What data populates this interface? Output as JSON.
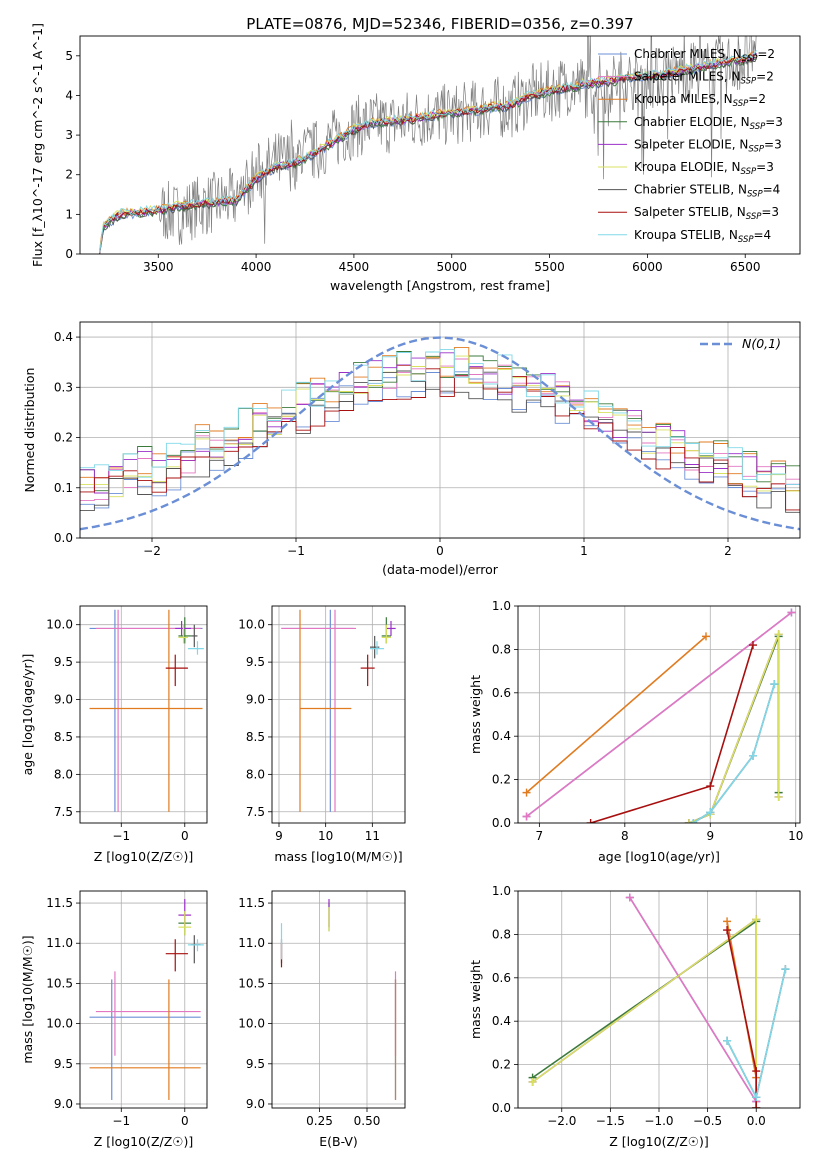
{
  "title": "PLATE=0876, MJD=52346, FIBERID=0356, z=0.397",
  "series_colors": [
    "#6b8fd6",
    "#e377c2",
    "#e07b20",
    "#3c7a3c",
    "#9b30c8",
    "#d8e060",
    "#555555",
    "#a80f0f",
    "#80d8e8"
  ],
  "chart_data": [
    {
      "type": "line",
      "xlabel": "wavelength [Angstrom, rest frame]",
      "ylabel": "Flux [f_λ10^-17 erg cm^-2 s^-1 A^-1]",
      "xlim": [
        3100,
        6780
      ],
      "ylim": [
        0,
        5.5
      ],
      "xticks": [
        3500,
        4000,
        4500,
        5000,
        5500,
        6000,
        6500
      ],
      "yticks": [
        0,
        1,
        2,
        3,
        4,
        5
      ],
      "legend": [
        {
          "imf": "Chabrier",
          "lib": "MILES",
          "n": "2"
        },
        {
          "imf": "Salpeter",
          "lib": "MILES",
          "n": "2"
        },
        {
          "imf": "Kroupa",
          "lib": "MILES",
          "n": "2"
        },
        {
          "imf": "Chabrier",
          "lib": "ELODIE",
          "n": "3"
        },
        {
          "imf": "Salpeter",
          "lib": "ELODIE",
          "n": "3"
        },
        {
          "imf": "Kroupa",
          "lib": "ELODIE",
          "n": "3"
        },
        {
          "imf": "Chabrier",
          "lib": "STELIB",
          "n": "4"
        },
        {
          "imf": "Salpeter",
          "lib": "STELIB",
          "n": "3"
        },
        {
          "imf": "Kroupa",
          "lib": "STELIB",
          "n": "4"
        }
      ],
      "legend_position": "right",
      "data_x": [
        3200,
        3220,
        3300,
        3400,
        3500,
        3600,
        3700,
        3800,
        3900,
        4000,
        4100,
        4200,
        4300,
        4400,
        4500,
        4600,
        4700,
        4800,
        4900,
        5000,
        5100,
        5200,
        5300,
        5400,
        5500,
        5600,
        5700,
        5800,
        5900,
        6000,
        6100,
        6200,
        6300,
        6400,
        6500,
        6560
      ],
      "data_y": [
        0.0,
        0.75,
        1.0,
        1.05,
        1.1,
        1.0,
        1.2,
        1.3,
        1.4,
        2.0,
        2.3,
        2.4,
        2.6,
        2.9,
        3.2,
        3.3,
        3.3,
        3.4,
        3.5,
        3.5,
        3.6,
        3.7,
        3.7,
        4.0,
        4.1,
        4.3,
        4.2,
        4.3,
        4.4,
        4.4,
        4.5,
        4.6,
        4.6,
        4.8,
        4.9,
        4.9
      ],
      "model_y": [
        0.0,
        0.7,
        1.0,
        1.05,
        1.1,
        1.2,
        1.25,
        1.3,
        1.35,
        1.9,
        2.2,
        2.3,
        2.55,
        2.85,
        3.15,
        3.3,
        3.35,
        3.4,
        3.5,
        3.55,
        3.6,
        3.7,
        3.75,
        4.0,
        4.1,
        4.2,
        4.3,
        4.35,
        4.45,
        4.5,
        4.55,
        4.65,
        4.75,
        4.85,
        4.9,
        5.0
      ]
    },
    {
      "type": "histogram",
      "xlabel": "(data-model)/error",
      "ylabel": "Normed distribution",
      "xlim": [
        -2.5,
        2.5
      ],
      "ylim": [
        0,
        0.43
      ],
      "xticks": [
        -2,
        -1,
        0,
        1,
        2
      ],
      "yticks": [
        0.0,
        0.1,
        0.2,
        0.3,
        0.4
      ],
      "legend": "N(0,1)",
      "legend_position": "top-right",
      "grid": true
    },
    {
      "type": "errorbar",
      "xlabel": "Z [log10(Z/Z☉)]",
      "ylabel": "age  [log10(age/yr)]",
      "xlim": [
        -1.65,
        0.35
      ],
      "ylim": [
        7.35,
        10.25
      ],
      "xticks": [
        -1,
        0
      ],
      "yticks": [
        7.5,
        8.0,
        8.5,
        9.0,
        9.5,
        10.0
      ],
      "grid": true,
      "points": [
        {
          "s": 0,
          "x": -1.1,
          "y": 9.95,
          "xlo": -1.5,
          "xhi": 0.28,
          "ylo": 7.5,
          "yhi": 10.2
        },
        {
          "s": 1,
          "x": -1.05,
          "y": 9.95,
          "xlo": -1.4,
          "xhi": 0.25,
          "ylo": 7.5,
          "yhi": 10.2
        },
        {
          "s": 2,
          "x": -0.25,
          "y": 8.88,
          "xlo": -1.5,
          "xhi": 0.28,
          "ylo": 7.5,
          "yhi": 10.2
        },
        {
          "s": 3,
          "x": 0.0,
          "y": 9.85,
          "xlo": -0.1,
          "xhi": 0.1,
          "ylo": 9.75,
          "yhi": 10.1
        },
        {
          "s": 4,
          "x": -0.05,
          "y": 9.95,
          "xlo": -0.15,
          "xhi": 0.1,
          "ylo": 9.85,
          "yhi": 10.05
        },
        {
          "s": 5,
          "x": -0.02,
          "y": 9.83,
          "xlo": -0.1,
          "xhi": 0.05,
          "ylo": 9.75,
          "yhi": 10.0
        },
        {
          "s": 6,
          "x": 0.15,
          "y": 9.85,
          "xlo": 0.1,
          "xhi": 0.2,
          "ylo": 9.7,
          "yhi": 10.0
        },
        {
          "s": 7,
          "x": -0.15,
          "y": 9.42,
          "xlo": -0.3,
          "xhi": 0.05,
          "ylo": 9.18,
          "yhi": 9.6
        },
        {
          "s": 8,
          "x": 0.2,
          "y": 9.68,
          "xlo": 0.05,
          "xhi": 0.3,
          "ylo": 9.6,
          "yhi": 9.78
        }
      ]
    },
    {
      "type": "errorbar",
      "xlabel": "mass [log10(M/M☉)]",
      "ylabel": "",
      "xlim": [
        8.85,
        11.7
      ],
      "ylim": [
        7.35,
        10.25
      ],
      "xticks": [
        9,
        10,
        11
      ],
      "yticks": [
        7.5,
        8.0,
        8.5,
        9.0,
        9.5,
        10.0
      ],
      "grid": true,
      "points": [
        {
          "s": 0,
          "x": 10.1,
          "y": 9.95,
          "xlo": 9.05,
          "xhi": 10.6,
          "ylo": 7.5,
          "yhi": 10.2
        },
        {
          "s": 1,
          "x": 10.2,
          "y": 9.95,
          "xlo": 9.05,
          "xhi": 10.65,
          "ylo": 7.5,
          "yhi": 10.2
        },
        {
          "s": 2,
          "x": 9.45,
          "y": 8.88,
          "xlo": 9.45,
          "xhi": 10.55,
          "ylo": 7.5,
          "yhi": 10.2
        },
        {
          "s": 3,
          "x": 11.3,
          "y": 9.85,
          "xlo": 11.2,
          "xhi": 11.4,
          "ylo": 9.75,
          "yhi": 10.1
        },
        {
          "s": 4,
          "x": 11.4,
          "y": 9.95,
          "xlo": 11.3,
          "xhi": 11.5,
          "ylo": 9.85,
          "yhi": 10.05
        },
        {
          "s": 5,
          "x": 11.3,
          "y": 9.83,
          "xlo": 11.2,
          "xhi": 11.4,
          "ylo": 9.75,
          "yhi": 10.0
        },
        {
          "s": 6,
          "x": 11.05,
          "y": 9.7,
          "xlo": 10.95,
          "xhi": 11.15,
          "ylo": 9.55,
          "yhi": 9.85
        },
        {
          "s": 7,
          "x": 10.9,
          "y": 9.42,
          "xlo": 10.75,
          "xhi": 11.05,
          "ylo": 9.18,
          "yhi": 9.6
        },
        {
          "s": 8,
          "x": 11.1,
          "y": 9.68,
          "xlo": 10.95,
          "xhi": 11.25,
          "ylo": 9.6,
          "yhi": 9.78
        }
      ]
    },
    {
      "type": "line",
      "xlabel": "age  [log10(age/yr)]",
      "ylabel": "mass weight",
      "xlim": [
        6.75,
        10.05
      ],
      "ylim": [
        0,
        1.0
      ],
      "xticks": [
        7,
        8,
        9,
        10
      ],
      "yticks": [
        0.0,
        0.2,
        0.4,
        0.6,
        0.8,
        1.0
      ],
      "grid": true,
      "series": [
        {
          "s": 0,
          "x": [
            6.85,
            9.95
          ],
          "y": [
            0.03,
            0.97
          ]
        },
        {
          "s": 1,
          "x": [
            6.85,
            9.95
          ],
          "y": [
            0.03,
            0.97
          ]
        },
        {
          "s": 2,
          "x": [
            6.85,
            8.95
          ],
          "y": [
            0.14,
            0.86
          ]
        },
        {
          "s": 3,
          "x": [
            8.75,
            9.0,
            9.8,
            9.8
          ],
          "y": [
            0.0,
            0.04,
            0.86,
            0.14
          ]
        },
        {
          "s": 4,
          "x": [
            8.75,
            9.0,
            9.8,
            9.8
          ],
          "y": [
            0.0,
            0.04,
            0.87,
            0.12
          ]
        },
        {
          "s": 5,
          "x": [
            8.75,
            9.0,
            9.8,
            9.8
          ],
          "y": [
            0.0,
            0.04,
            0.87,
            0.12
          ]
        },
        {
          "s": 6,
          "x": [
            8.8,
            9.0,
            9.5,
            9.75
          ],
          "y": [
            0.0,
            0.05,
            0.31,
            0.64
          ]
        },
        {
          "s": 7,
          "x": [
            7.6,
            9.0,
            9.5
          ],
          "y": [
            0.0,
            0.17,
            0.82
          ]
        },
        {
          "s": 8,
          "x": [
            8.8,
            9.0,
            9.5,
            9.75
          ],
          "y": [
            0.0,
            0.05,
            0.31,
            0.64
          ]
        }
      ]
    },
    {
      "type": "errorbar",
      "xlabel": "Z [log10(Z/Z☉)]",
      "ylabel": "mass [log10(M/M☉)]",
      "xlim": [
        -1.65,
        0.35
      ],
      "ylim": [
        8.95,
        11.65
      ],
      "xticks": [
        -1,
        0
      ],
      "yticks": [
        9.0,
        9.5,
        10.0,
        10.5,
        11.0,
        11.5
      ],
      "grid": true,
      "points": [
        {
          "s": 0,
          "x": -1.15,
          "y": 10.08,
          "xlo": -1.5,
          "xhi": 0.25,
          "ylo": 9.05,
          "yhi": 10.55
        },
        {
          "s": 1,
          "x": -1.1,
          "y": 10.15,
          "xlo": -1.4,
          "xhi": 0.25,
          "ylo": 9.6,
          "yhi": 10.65
        },
        {
          "s": 2,
          "x": -0.25,
          "y": 9.45,
          "xlo": -1.5,
          "xhi": 0.25,
          "ylo": 9.05,
          "yhi": 10.55
        },
        {
          "s": 3,
          "x": 0.0,
          "y": 11.25,
          "xlo": -0.1,
          "xhi": 0.1,
          "ylo": 11.1,
          "yhi": 11.4
        },
        {
          "s": 4,
          "x": 0.0,
          "y": 11.35,
          "xlo": -0.1,
          "xhi": 0.1,
          "ylo": 11.2,
          "yhi": 11.55
        },
        {
          "s": 5,
          "x": 0.0,
          "y": 11.2,
          "xlo": -0.1,
          "xhi": 0.1,
          "ylo": 11.1,
          "yhi": 11.4
        },
        {
          "s": 6,
          "x": 0.15,
          "y": 10.98,
          "xlo": 0.1,
          "xhi": 0.25,
          "ylo": 10.75,
          "yhi": 11.1
        },
        {
          "s": 7,
          "x": -0.15,
          "y": 10.87,
          "xlo": -0.3,
          "xhi": 0.05,
          "ylo": 10.65,
          "yhi": 11.05
        },
        {
          "s": 8,
          "x": 0.2,
          "y": 10.98,
          "xlo": 0.05,
          "xhi": 0.3,
          "ylo": 10.9,
          "yhi": 11.05
        }
      ]
    },
    {
      "type": "errorbar",
      "xlabel": "E(B-V)",
      "ylabel": "",
      "xlim": [
        0.0,
        0.7
      ],
      "ylim": [
        8.95,
        11.65
      ],
      "xticks": [
        0.25,
        0.5
      ],
      "xticklabels": [
        "0.25",
        "0.50"
      ],
      "yticks": [
        9.0,
        9.5,
        10.0,
        10.5,
        11.0,
        11.5
      ],
      "grid": true,
      "points": [
        {
          "s": 0,
          "x": 0.65,
          "y": 10.1,
          "ylo": 9.05,
          "yhi": 10.55
        },
        {
          "s": 1,
          "x": 0.65,
          "y": 10.2,
          "ylo": 9.6,
          "yhi": 10.65
        },
        {
          "s": 2,
          "x": 0.65,
          "y": 9.45,
          "ylo": 9.05,
          "yhi": 10.55
        },
        {
          "s": 3,
          "x": 0.3,
          "y": 11.3,
          "ylo": 11.15,
          "yhi": 11.5
        },
        {
          "s": 4,
          "x": 0.3,
          "y": 11.35,
          "ylo": 11.2,
          "yhi": 11.55
        },
        {
          "s": 5,
          "x": 0.3,
          "y": 11.25,
          "ylo": 11.15,
          "yhi": 11.45
        },
        {
          "s": 6,
          "x": 0.05,
          "y": 10.9,
          "ylo": 10.75,
          "yhi": 11.05
        },
        {
          "s": 7,
          "x": 0.05,
          "y": 10.85,
          "ylo": 10.7,
          "yhi": 11.0
        },
        {
          "s": 8,
          "x": 0.05,
          "y": 11.0,
          "ylo": 10.8,
          "yhi": 11.25
        }
      ]
    },
    {
      "type": "line",
      "xlabel": "Z [log10(Z/Z☉)]",
      "ylabel": "mass weight",
      "xlim": [
        -2.45,
        0.45
      ],
      "ylim": [
        0,
        1.0
      ],
      "xticks": [
        -2.0,
        -1.5,
        -1.0,
        -0.5,
        0.0
      ],
      "xticklabels": [
        "−2.0",
        "−1.5",
        "−1.0",
        "−0.5",
        "0.0"
      ],
      "yticks": [
        0.0,
        0.2,
        0.4,
        0.6,
        0.8,
        1.0
      ],
      "grid": true,
      "series": [
        {
          "s": 0,
          "x": [
            -1.3,
            0.0
          ],
          "y": [
            0.97,
            0.03
          ]
        },
        {
          "s": 1,
          "x": [
            -1.3,
            0.0
          ],
          "y": [
            0.97,
            0.03
          ]
        },
        {
          "s": 2,
          "x": [
            -0.3,
            0.0
          ],
          "y": [
            0.86,
            0.14
          ]
        },
        {
          "s": 3,
          "x": [
            -2.3,
            0.0,
            0.0
          ],
          "y": [
            0.14,
            0.86,
            0.0
          ]
        },
        {
          "s": 4,
          "x": [
            -2.3,
            0.0,
            0.0
          ],
          "y": [
            0.12,
            0.87,
            0.0
          ]
        },
        {
          "s": 5,
          "x": [
            -2.3,
            0.0,
            0.0
          ],
          "y": [
            0.12,
            0.87,
            0.0
          ]
        },
        {
          "s": 6,
          "x": [
            -0.3,
            0.0,
            0.3
          ],
          "y": [
            0.31,
            0.05,
            0.64
          ]
        },
        {
          "s": 7,
          "x": [
            -0.3,
            0.0,
            0.0
          ],
          "y": [
            0.82,
            0.17,
            0.0
          ]
        },
        {
          "s": 8,
          "x": [
            -0.3,
            0.0,
            0.3
          ],
          "y": [
            0.31,
            0.05,
            0.64
          ]
        }
      ]
    }
  ]
}
